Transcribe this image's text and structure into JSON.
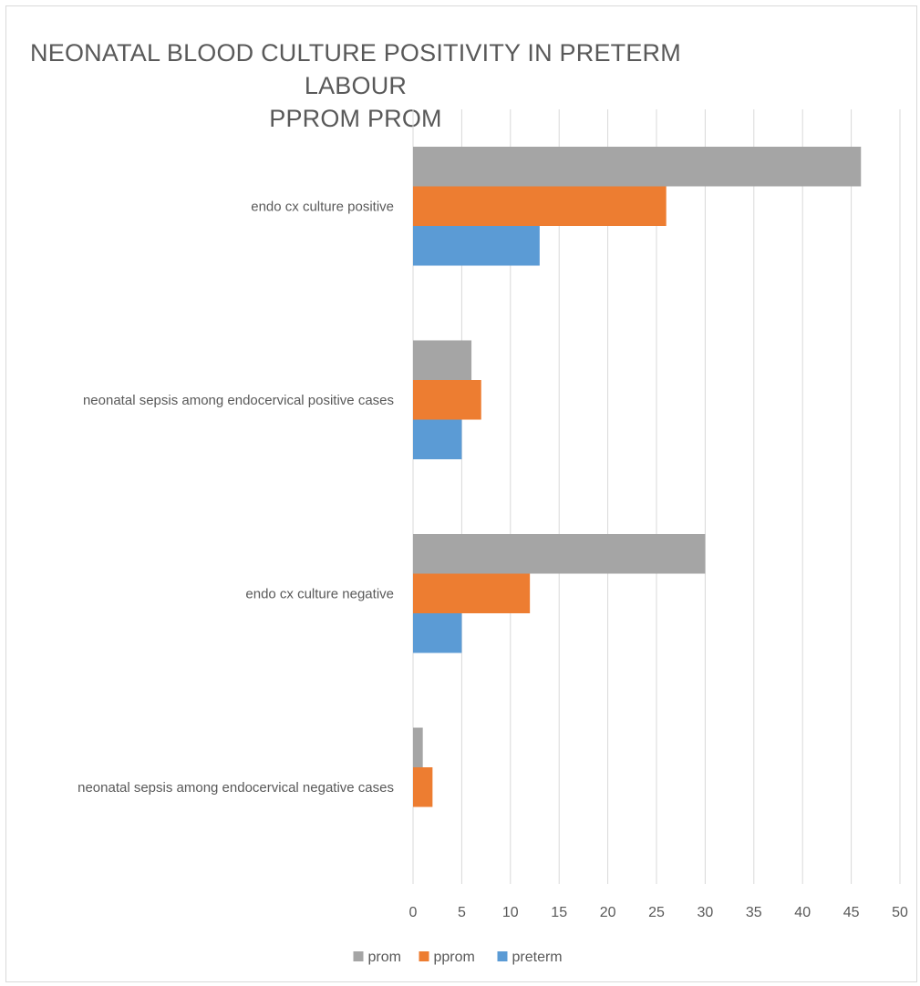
{
  "chart_data": {
    "type": "bar",
    "orientation": "horizontal",
    "title_lines": [
      "NEONATAL BLOOD CULTURE POSITIVITY IN PRETERM LABOUR",
      "PPROM PROM"
    ],
    "categories": [
      "endo cx culture positive",
      "neonatal sepsis among endocervical positive cases",
      "endo cx culture negative",
      "neonatal sepsis among endocervical negative cases"
    ],
    "series": [
      {
        "name": "prom",
        "color": "#a5a5a5",
        "values": [
          46,
          6,
          30,
          1
        ]
      },
      {
        "name": "pprom",
        "color": "#ed7d31",
        "values": [
          26,
          7,
          12,
          2
        ]
      },
      {
        "name": "preterm",
        "color": "#5b9bd5",
        "values": [
          13,
          5,
          5,
          0
        ]
      }
    ],
    "xlim": [
      0,
      50
    ],
    "xticks": [
      0,
      5,
      10,
      15,
      20,
      25,
      30,
      35,
      40,
      45,
      50
    ],
    "grid": true,
    "legend_position": "bottom"
  }
}
